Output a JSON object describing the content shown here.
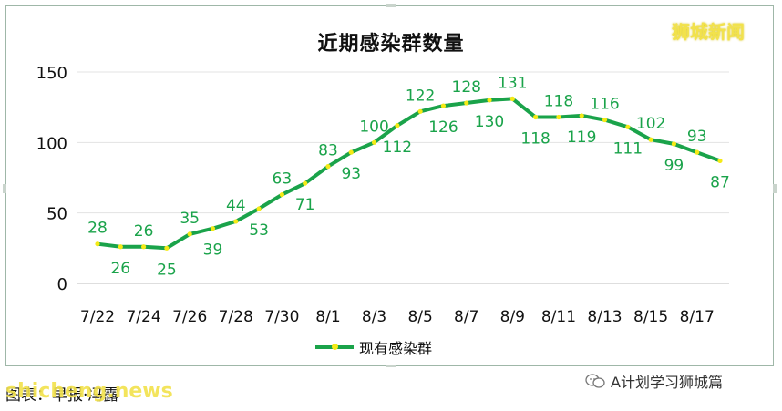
{
  "watermark": "狮城新闻",
  "footer": {
    "source": "图表：早报·冯露",
    "site_watermark": "shicheng.news",
    "account": "A计划学习狮城篇"
  },
  "colors": {
    "line": "#1aa34a",
    "marker": "#f5ea16",
    "label": "#1aa34a",
    "grid": "#e3e3e3"
  },
  "chart_data": {
    "type": "line",
    "title": "近期感染群数量",
    "ylim": [
      0,
      150
    ],
    "yticks": [
      0,
      50,
      100,
      150
    ],
    "grid": true,
    "legend_position": "bottom",
    "x": [
      "7/22",
      "7/23",
      "7/24",
      "7/25",
      "7/26",
      "7/27",
      "7/28",
      "7/29",
      "7/30",
      "7/31",
      "8/1",
      "8/2",
      "8/3",
      "8/4",
      "8/5",
      "8/6",
      "8/7",
      "8/8",
      "8/9",
      "8/10",
      "8/11",
      "8/12",
      "8/13",
      "8/14",
      "8/15",
      "8/16",
      "8/17",
      "8/18"
    ],
    "xtick_labels": [
      "7/22",
      "7/24",
      "7/26",
      "7/28",
      "7/30",
      "8/1",
      "8/3",
      "8/5",
      "8/7",
      "8/9",
      "8/11",
      "8/13",
      "8/15",
      "8/17"
    ],
    "series": [
      {
        "name": "现有感染群",
        "values": [
          28,
          26,
          26,
          25,
          35,
          39,
          44,
          53,
          63,
          71,
          83,
          93,
          100,
          112,
          122,
          126,
          128,
          130,
          131,
          118,
          118,
          119,
          116,
          111,
          102,
          99,
          93,
          87
        ]
      }
    ]
  }
}
